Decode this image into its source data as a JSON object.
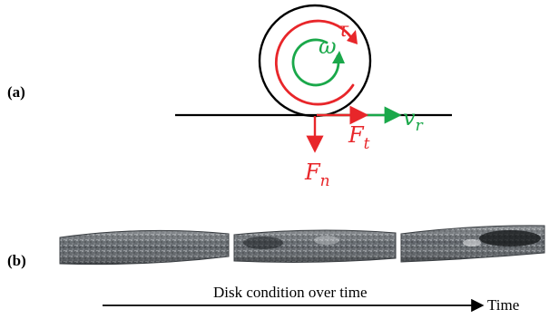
{
  "panels": {
    "a": {
      "label": "(a)"
    },
    "b": {
      "label": "(b)"
    }
  },
  "symbols": {
    "omega": "ω",
    "tau": "τ",
    "v": "v",
    "v_sub": "r",
    "F_t": "F",
    "F_t_sub": "t",
    "F_n": "F",
    "F_n_sub": "n"
  },
  "caption": {
    "condition": "Disk condition over time",
    "axis": "Time"
  },
  "colors": {
    "torque": "#e8262a",
    "omega": "#1aa84a",
    "force": "#e8262a",
    "velocity": "#1aa84a",
    "outline": "#000000"
  },
  "disks": [
    {
      "name": "disk-early",
      "wear": "low"
    },
    {
      "name": "disk-mid",
      "wear": "medium"
    },
    {
      "name": "disk-late",
      "wear": "high"
    }
  ]
}
